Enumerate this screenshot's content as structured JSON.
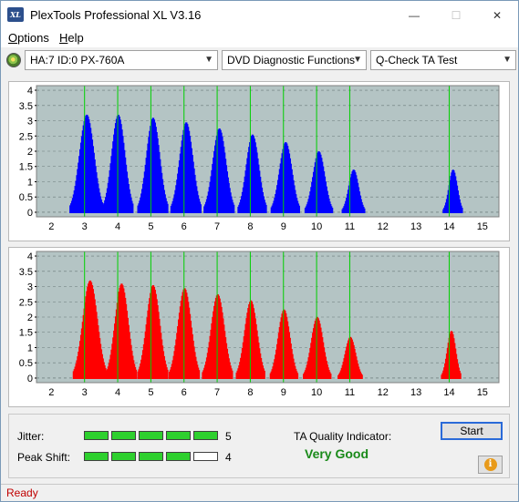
{
  "window": {
    "title": "PlexTools Professional XL V3.16",
    "icon_text": "XL",
    "minimize": "—",
    "maximize": "☐",
    "close": "✕"
  },
  "menu": [
    {
      "label": "Options",
      "accel": "O",
      "rest": "ptions"
    },
    {
      "label": "Help",
      "accel": "H",
      "rest": "elp"
    }
  ],
  "toolbar": {
    "drive": "HA:7 ID:0  PX-760A",
    "function": "DVD Diagnostic Functions",
    "test": "Q-Check TA Test",
    "arrow": "▼"
  },
  "chart_data": [
    {
      "type": "bar",
      "series_color": "#0000ff",
      "x_ticks": [
        "2",
        "3",
        "4",
        "5",
        "6",
        "7",
        "8",
        "9",
        "10",
        "11",
        "12",
        "13",
        "14",
        "15"
      ],
      "y_ticks": [
        "0",
        "0.5",
        "1",
        "1.5",
        "2",
        "2.5",
        "3",
        "3.5",
        "4"
      ],
      "xlim": [
        1.55,
        15.5
      ],
      "ylim": [
        -0.15,
        4.15
      ],
      "reference_lines": [
        3,
        4,
        5,
        6,
        7,
        8,
        9,
        10,
        11,
        14
      ],
      "reference_color": "#00d000",
      "peaks": [
        {
          "center": 3.05,
          "height": 3.2,
          "width": 0.22
        },
        {
          "center": 4.0,
          "height": 3.2,
          "width": 0.2
        },
        {
          "center": 5.05,
          "height": 3.1,
          "width": 0.2
        },
        {
          "center": 6.05,
          "height": 2.95,
          "width": 0.2
        },
        {
          "center": 7.05,
          "height": 2.75,
          "width": 0.2
        },
        {
          "center": 8.05,
          "height": 2.55,
          "width": 0.19
        },
        {
          "center": 9.05,
          "height": 2.3,
          "width": 0.19
        },
        {
          "center": 10.05,
          "height": 2.0,
          "width": 0.18
        },
        {
          "center": 11.1,
          "height": 1.4,
          "width": 0.15
        },
        {
          "center": 14.1,
          "height": 1.4,
          "width": 0.13
        }
      ],
      "grid": "dashed-horizontal",
      "background": "#b4c4c4"
    },
    {
      "type": "bar",
      "series_color": "#ff0000",
      "x_ticks": [
        "2",
        "3",
        "4",
        "5",
        "6",
        "7",
        "8",
        "9",
        "10",
        "11",
        "12",
        "13",
        "14",
        "15"
      ],
      "y_ticks": [
        "0",
        "0.5",
        "1",
        "1.5",
        "2",
        "2.5",
        "3",
        "3.5",
        "4"
      ],
      "xlim": [
        1.55,
        15.5
      ],
      "ylim": [
        -0.15,
        4.15
      ],
      "reference_lines": [
        3,
        4,
        5,
        6,
        7,
        8,
        9,
        10,
        11,
        14
      ],
      "reference_color": "#00d000",
      "peaks": [
        {
          "center": 3.15,
          "height": 3.2,
          "width": 0.22
        },
        {
          "center": 4.1,
          "height": 3.1,
          "width": 0.2
        },
        {
          "center": 5.05,
          "height": 3.05,
          "width": 0.2
        },
        {
          "center": 6.0,
          "height": 2.95,
          "width": 0.2
        },
        {
          "center": 7.0,
          "height": 2.75,
          "width": 0.2
        },
        {
          "center": 8.0,
          "height": 2.55,
          "width": 0.19
        },
        {
          "center": 9.0,
          "height": 2.25,
          "width": 0.18
        },
        {
          "center": 10.0,
          "height": 2.0,
          "width": 0.18
        },
        {
          "center": 11.0,
          "height": 1.35,
          "width": 0.16
        },
        {
          "center": 14.05,
          "height": 1.55,
          "width": 0.13
        }
      ],
      "grid": "dashed-horizontal",
      "background": "#b4c4c4"
    }
  ],
  "results": {
    "jitter_label": "Jitter:",
    "jitter_value": "5",
    "jitter_segments_on": 5,
    "peak_label": "Peak Shift:",
    "peak_value": "4",
    "peak_segments_on": 4,
    "segments_total": 5,
    "ta_label": "TA Quality Indicator:",
    "ta_value": "Very Good",
    "start_label": "Start",
    "info_icon": "i"
  },
  "status": {
    "text": "Ready"
  }
}
